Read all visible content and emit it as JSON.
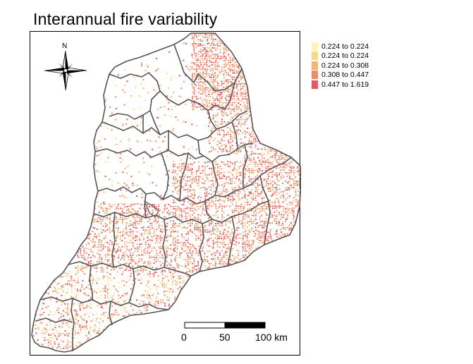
{
  "title": "Interannual fire variability",
  "legend": {
    "items": [
      {
        "label": "0.224 to 0.224",
        "color": "#fcf2c0"
      },
      {
        "label": "0.224 to 0.224",
        "color": "#f8d88c"
      },
      {
        "label": "0.224 to 0.308",
        "color": "#f3b67a"
      },
      {
        "label": "0.308 to 0.447",
        "color": "#ec8c6e"
      },
      {
        "label": "0.447 to 1.619",
        "color": "#e25a62"
      }
    ]
  },
  "north_arrow": {
    "label": "N",
    "icon": "compass-rose-icon"
  },
  "scale_bar": {
    "labels": [
      "0",
      "50",
      "100 km"
    ]
  },
  "colors": {
    "outline": "#555555",
    "frame": "#000000"
  }
}
